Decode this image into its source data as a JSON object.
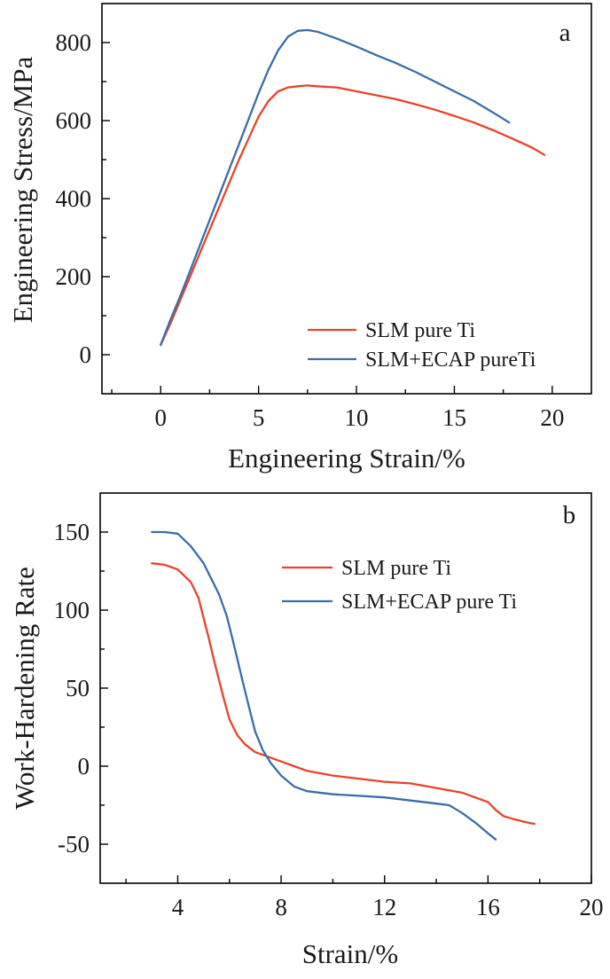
{
  "chart_data": [
    {
      "type": "line",
      "panel_label": "a",
      "xlabel": "Engineering Strain/%",
      "ylabel": "Engineering Stress/MPa",
      "xlim": [
        -3,
        22
      ],
      "ylim": [
        -100,
        900
      ],
      "xticks": [
        0,
        5,
        10,
        15,
        20
      ],
      "yticks": [
        0,
        200,
        400,
        600,
        800
      ],
      "grid": false,
      "legend_position": "bottom-right",
      "series": [
        {
          "name": "SLM pure Ti",
          "color": "#e8432a",
          "x": [
            0,
            0.5,
            1,
            1.5,
            2,
            2.5,
            3,
            3.5,
            4,
            4.5,
            5,
            5.5,
            6,
            6.5,
            7,
            7.5,
            8,
            9,
            10,
            11,
            12,
            13,
            14,
            15,
            16,
            17,
            18,
            19,
            19.6
          ],
          "y": [
            25,
            80,
            140,
            200,
            260,
            320,
            380,
            440,
            500,
            555,
            610,
            650,
            675,
            685,
            688,
            690,
            688,
            685,
            675,
            665,
            655,
            642,
            628,
            612,
            595,
            575,
            553,
            530,
            512
          ]
        },
        {
          "name": "SLM+ECAP pureTi",
          "color": "#3a6ea8",
          "x": [
            0,
            0.5,
            1,
            1.5,
            2,
            2.5,
            3,
            3.5,
            4,
            4.5,
            5,
            5.5,
            6,
            6.5,
            7,
            7.5,
            8,
            9,
            10,
            11,
            12,
            13,
            14,
            15,
            16,
            17,
            17.8
          ],
          "y": [
            25,
            90,
            150,
            215,
            280,
            345,
            410,
            475,
            540,
            605,
            670,
            730,
            780,
            815,
            830,
            832,
            828,
            810,
            790,
            768,
            748,
            725,
            700,
            675,
            650,
            620,
            595
          ]
        }
      ]
    },
    {
      "type": "line",
      "panel_label": "b",
      "xlabel": "Strain/%",
      "ylabel": "Work-Hardening Rate",
      "xlim": [
        1,
        20
      ],
      "ylim": [
        -75,
        175
      ],
      "xticks": [
        4,
        8,
        12,
        16,
        20
      ],
      "yticks": [
        -50,
        0,
        50,
        100,
        150
      ],
      "grid": false,
      "legend_position": "top-right",
      "series": [
        {
          "name": "SLM pure Ti",
          "color": "#e8432a",
          "x": [
            3,
            3.5,
            4,
            4.5,
            4.8,
            5,
            5.2,
            5.4,
            5.6,
            5.8,
            6,
            6.3,
            6.6,
            7,
            7.5,
            8,
            8.5,
            9,
            10,
            11,
            12,
            13,
            14,
            15,
            15.5,
            16,
            16.3,
            16.6,
            17,
            17.5,
            17.8
          ],
          "y": [
            130,
            129,
            126,
            118,
            108,
            95,
            82,
            68,
            55,
            42,
            30,
            20,
            14,
            9,
            6,
            3,
            0,
            -3,
            -6,
            -8,
            -10,
            -11,
            -14,
            -17,
            -20,
            -23,
            -28,
            -32,
            -34,
            -36,
            -37
          ]
        },
        {
          "name": "SLM+ECAP pure Ti",
          "color": "#3a6ea8",
          "x": [
            3,
            3.5,
            4,
            4.5,
            5,
            5.3,
            5.6,
            5.9,
            6.2,
            6.5,
            6.8,
            7,
            7.3,
            7.6,
            8,
            8.5,
            9,
            10,
            11,
            12,
            13,
            14,
            14.5,
            15,
            15.5,
            16,
            16.3
          ],
          "y": [
            150,
            150,
            149,
            141,
            130,
            120,
            110,
            96,
            76,
            55,
            35,
            22,
            10,
            2,
            -6,
            -13,
            -16,
            -18,
            -19,
            -20,
            -22,
            -24,
            -25,
            -30,
            -36,
            -43,
            -47
          ]
        }
      ]
    }
  ]
}
